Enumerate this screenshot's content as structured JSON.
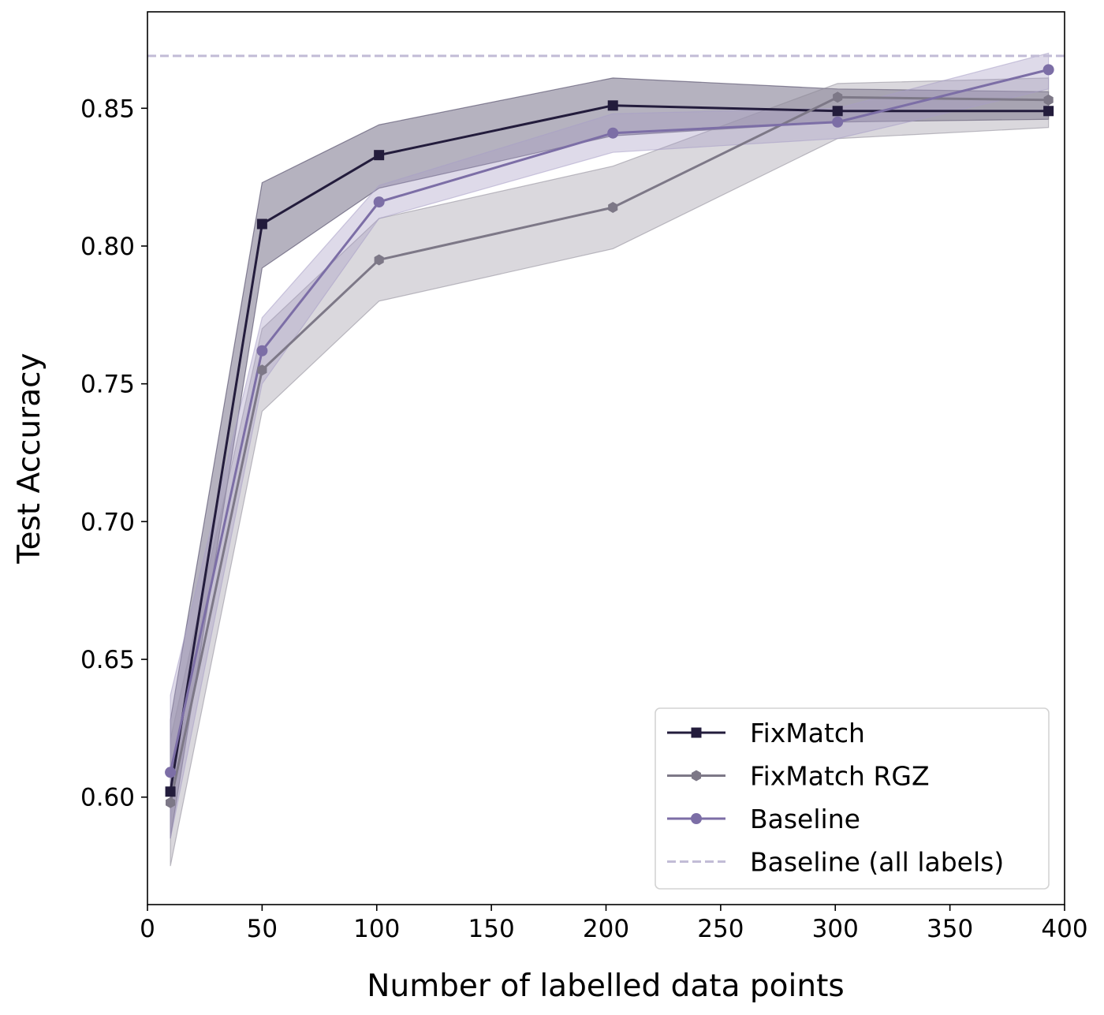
{
  "chart_data": {
    "type": "line",
    "title": "",
    "xlabel": "Number of labelled data points",
    "ylabel": "Test Accuracy",
    "xlim": [
      0,
      400
    ],
    "ylim": [
      0.561,
      0.885
    ],
    "xticks": [
      0,
      50,
      100,
      150,
      200,
      250,
      300,
      350,
      400
    ],
    "xtick_labels": [
      "0",
      "50",
      "100",
      "150",
      "200",
      "250",
      "300",
      "350",
      "400"
    ],
    "yticks": [
      0.6,
      0.65,
      0.7,
      0.75,
      0.8,
      0.85
    ],
    "ytick_labels": [
      "0.60",
      "0.65",
      "0.70",
      "0.75",
      "0.80",
      "0.85"
    ],
    "grid": false,
    "legend_position": "lower-right",
    "reference_line": {
      "name": "Baseline (all labels)",
      "y": 0.869,
      "style": "dashed",
      "color": "#c2bcd6"
    },
    "series": [
      {
        "name": "FixMatch",
        "marker": "square",
        "color": "#231c3c",
        "band_color": "#3d3456",
        "x": [
          10,
          50,
          101,
          203,
          301,
          393
        ],
        "values": [
          0.602,
          0.808,
          0.833,
          0.851,
          0.849,
          0.849
        ],
        "lower": [
          0.585,
          0.792,
          0.821,
          0.84,
          0.845,
          0.846
        ],
        "upper": [
          0.628,
          0.823,
          0.844,
          0.861,
          0.857,
          0.856
        ]
      },
      {
        "name": "FixMatch RGZ",
        "marker": "hexagon",
        "color": "#7d7887",
        "band_color": "#8e8a98",
        "x": [
          10,
          50,
          101,
          203,
          301,
          393
        ],
        "values": [
          0.598,
          0.755,
          0.795,
          0.814,
          0.854,
          0.853
        ],
        "lower": [
          0.575,
          0.74,
          0.78,
          0.799,
          0.839,
          0.843
        ],
        "upper": [
          0.621,
          0.77,
          0.81,
          0.829,
          0.859,
          0.861
        ]
      },
      {
        "name": "Baseline",
        "marker": "circle",
        "color": "#7c6ea6",
        "band_color": "#a79fc6",
        "x": [
          10,
          50,
          101,
          203,
          301,
          393
        ],
        "values": [
          0.609,
          0.762,
          0.816,
          0.841,
          0.845,
          0.864
        ],
        "lower": [
          0.585,
          0.75,
          0.81,
          0.834,
          0.839,
          0.857
        ],
        "upper": [
          0.637,
          0.774,
          0.822,
          0.848,
          0.85,
          0.87
        ]
      }
    ]
  }
}
